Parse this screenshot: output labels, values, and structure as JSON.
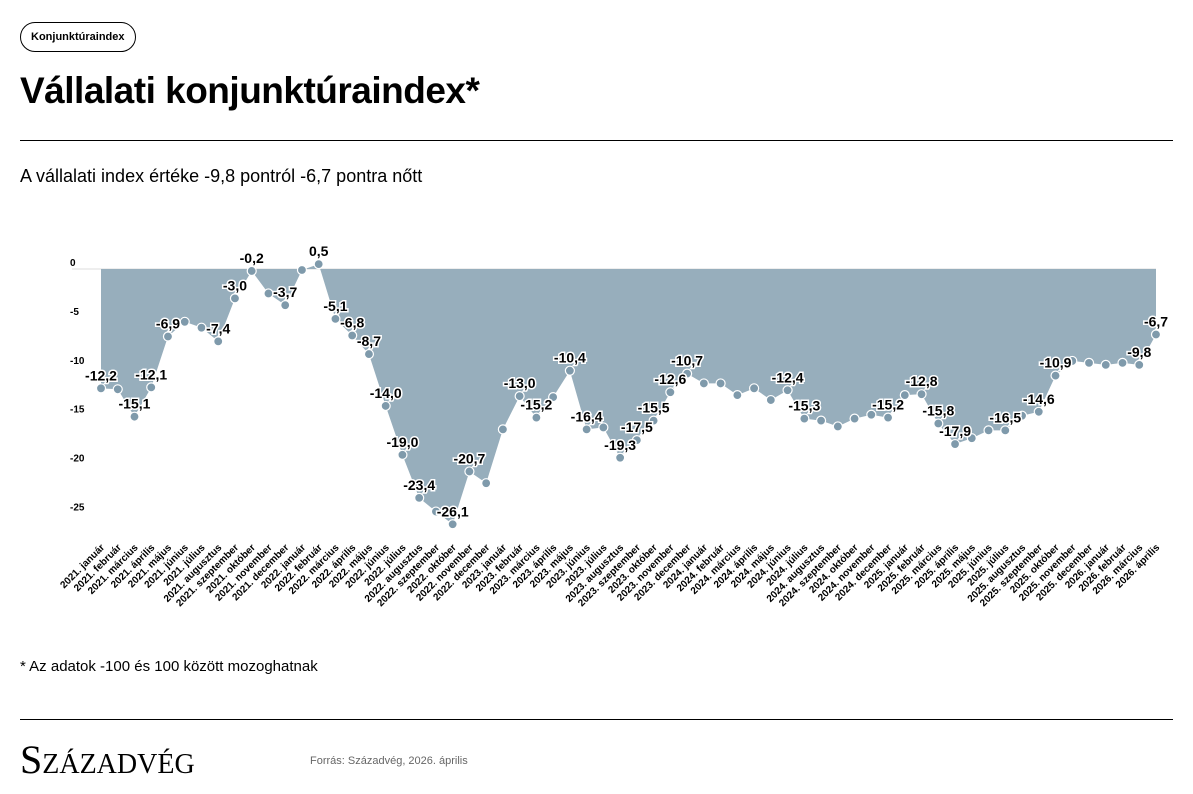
{
  "tag": "Konjunktúraindex",
  "title": "Vállalati konjunktúraindex*",
  "subtitle": "A vállalati index értéke -9,8 pontról -6,7 pontra nőtt",
  "footnote": "* Az adatok -100 és 100 között mozoghatnak",
  "logo": "Századvég",
  "source": "Forrás: Századvég, 2026. április",
  "colors": {
    "area": "#97aebc",
    "dot": "#7f9aab",
    "text": "#000000"
  },
  "chart_data": {
    "type": "area",
    "title": "Vállalati konjunktúraindex*",
    "xlabel": "",
    "ylabel": "",
    "ylim": [
      -27,
      1
    ],
    "yticks": [
      0,
      -5,
      -10,
      -15,
      -20,
      -25
    ],
    "grid": false,
    "categories": [
      "2021. január",
      "2021. február",
      "2021. március",
      "2021. április",
      "2021. május",
      "2021. június",
      "2021. július",
      "2021. augusztus",
      "2021. szeptember",
      "2021. október",
      "2021. november",
      "2021. december",
      "2022. január",
      "2022. február",
      "2022. március",
      "2022. április",
      "2022. május",
      "2022. június",
      "2022. július",
      "2022. augusztus",
      "2022. szeptember",
      "2022. október",
      "2022. november",
      "2022. december",
      "2023. január",
      "2023. február",
      "2023. március",
      "2023. április",
      "2023. május",
      "2023. június",
      "2023. július",
      "2023. augusztus",
      "2023. szeptember",
      "2023. október",
      "2023. november",
      "2023. december",
      "2024. január",
      "2024. február",
      "2024. március",
      "2024. április",
      "2024. május",
      "2024. június",
      "2024. július",
      "2024. augusztus",
      "2024. szeptember",
      "2024. október",
      "2024. november",
      "2024. december",
      "2025. január",
      "2025. február",
      "2025. március",
      "2025. április",
      "2025. május",
      "2025. június",
      "2025. július",
      "2025. augusztus",
      "2025. szeptember",
      "2025. október",
      "2025. november",
      "2025. december",
      "2026. január",
      "2026. február",
      "2026. március",
      "2026. április"
    ],
    "values": [
      -12.2,
      -12.3,
      -15.1,
      -12.1,
      -6.9,
      -5.4,
      -6.0,
      -7.4,
      -3.0,
      -0.2,
      -2.5,
      -3.7,
      -0.1,
      0.5,
      -5.1,
      -6.8,
      -8.7,
      -14.0,
      -19.0,
      -23.4,
      -24.8,
      -26.1,
      -20.7,
      -21.9,
      -16.4,
      -13.0,
      -15.2,
      -13.1,
      -10.4,
      -16.4,
      -16.2,
      -19.3,
      -17.5,
      -15.5,
      -12.6,
      -10.7,
      -11.7,
      -11.7,
      -12.9,
      -12.2,
      -13.4,
      -12.4,
      -15.3,
      -15.5,
      -16.1,
      -15.3,
      -14.9,
      -15.2,
      -12.9,
      -12.8,
      -15.8,
      -17.9,
      -17.3,
      -16.5,
      -16.5,
      -15.0,
      -14.6,
      -10.9,
      -9.4,
      -9.6,
      -9.8,
      -9.6,
      -9.8,
      -6.7
    ],
    "data_labels": {
      "0": "-12,2",
      "2": "-15,1",
      "3": "-12,1",
      "4": "-6,9",
      "7": "-7,4",
      "8": "-3,0",
      "9": "-0,2",
      "11": "-3,7",
      "13": "0,5",
      "14": "-5,1",
      "15": "-6,8",
      "16": "-8,7",
      "17": "-14,0",
      "18": "-19,0",
      "19": "-23,4",
      "21": "-26,1",
      "22": "-20,7",
      "25": "-13,0",
      "26": "-15,2",
      "28": "-10,4",
      "29": "-16,4",
      "31": "-19,3",
      "32": "-17,5",
      "33": "-15,5",
      "34": "-12,6",
      "35": "-10,7",
      "41": "-12,4",
      "42": "-15,3",
      "47": "-15,2",
      "49": "-12,8",
      "50": "-15,8",
      "51": "-17,9",
      "54": "-16,5",
      "56": "-14,6",
      "57": "-10,9",
      "62": "-9,8",
      "63": "-6,7"
    }
  }
}
